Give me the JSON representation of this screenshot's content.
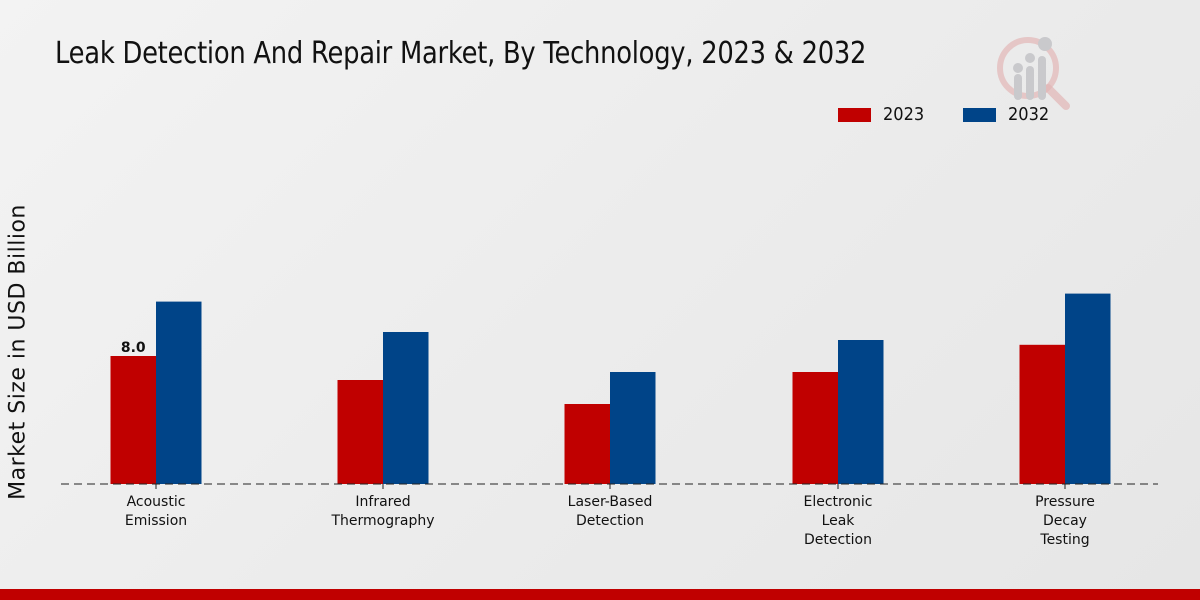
{
  "colors": {
    "series_2023": "#c00000",
    "series_2032": "#004488",
    "footer": "#c00000"
  },
  "logo": {
    "icon": "magnifier-chart-logo-icon"
  },
  "chart_data": {
    "type": "bar",
    "title": "Leak Detection And Repair Market, By Technology, 2023 & 2032",
    "xlabel": "",
    "ylabel": "Market Size in USD Billion",
    "categories": [
      [
        "Acoustic",
        "Emission"
      ],
      [
        "Infrared",
        "Thermography"
      ],
      [
        "Laser-Based",
        "Detection"
      ],
      [
        "Electronic",
        "Leak",
        "Detection"
      ],
      [
        "Pressure",
        "Decay",
        "Testing"
      ]
    ],
    "series": [
      {
        "name": "2023",
        "color": "#c00000",
        "values": [
          8.0,
          6.5,
          5.0,
          7.0,
          8.7
        ]
      },
      {
        "name": "2032",
        "color": "#004488",
        "values": [
          11.4,
          9.5,
          7.0,
          9.0,
          11.9
        ]
      }
    ],
    "data_labels": [
      {
        "series": 0,
        "index": 0,
        "text": "8.0"
      }
    ],
    "ylim": [
      0,
      13
    ],
    "grid": false,
    "legend_position": "top-right"
  }
}
